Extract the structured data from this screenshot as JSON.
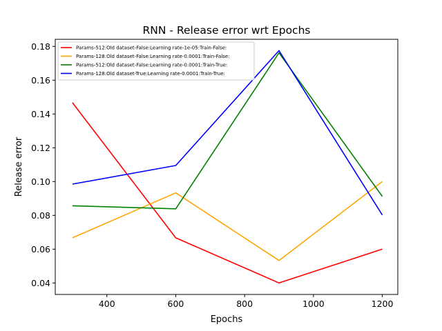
{
  "chart_data": {
    "type": "line",
    "title": "RNN - Release error wrt Epochs",
    "xlabel": "Epochs",
    "ylabel": "Release error",
    "x": [
      300,
      600,
      900,
      1200
    ],
    "xlim": [
      250,
      1245
    ],
    "ylim": [
      0.0332,
      0.1842
    ],
    "xticks": [
      400,
      600,
      800,
      1000,
      1200
    ],
    "xtick_labels": [
      "400",
      "600",
      "800",
      "1000",
      "1200"
    ],
    "yticks": [
      0.04,
      0.06,
      0.08,
      0.1,
      0.12,
      0.14,
      0.16,
      0.18
    ],
    "ytick_labels": [
      "0.04",
      "0.06",
      "0.08",
      "0.10",
      "0.12",
      "0.14",
      "0.16",
      "0.18"
    ],
    "grid": false,
    "legend_position": "top-left",
    "series": [
      {
        "name": "Params-512:Old dataset-False:Learning rate-1e-05:Train-False:",
        "color": "#ff0000",
        "values": [
          0.1467,
          0.0667,
          0.04,
          0.06
        ]
      },
      {
        "name": "Params-128:Old dataset-False:Learning rate-0.0001:Train-False:",
        "color": "#ffa500",
        "values": [
          0.0667,
          0.0933,
          0.0533,
          0.1
        ]
      },
      {
        "name": "Params-512:Old dataset-False:Learning rate-0.0001:Train-True:",
        "color": "#008000",
        "values": [
          0.0857,
          0.0839,
          0.1762,
          0.0912
        ]
      },
      {
        "name": "Params-128:Old dataset-True:Learning rate-0.0001:Train-True:",
        "color": "#0000ff",
        "values": [
          0.0985,
          0.1095,
          0.1775,
          0.0802
        ]
      }
    ]
  }
}
